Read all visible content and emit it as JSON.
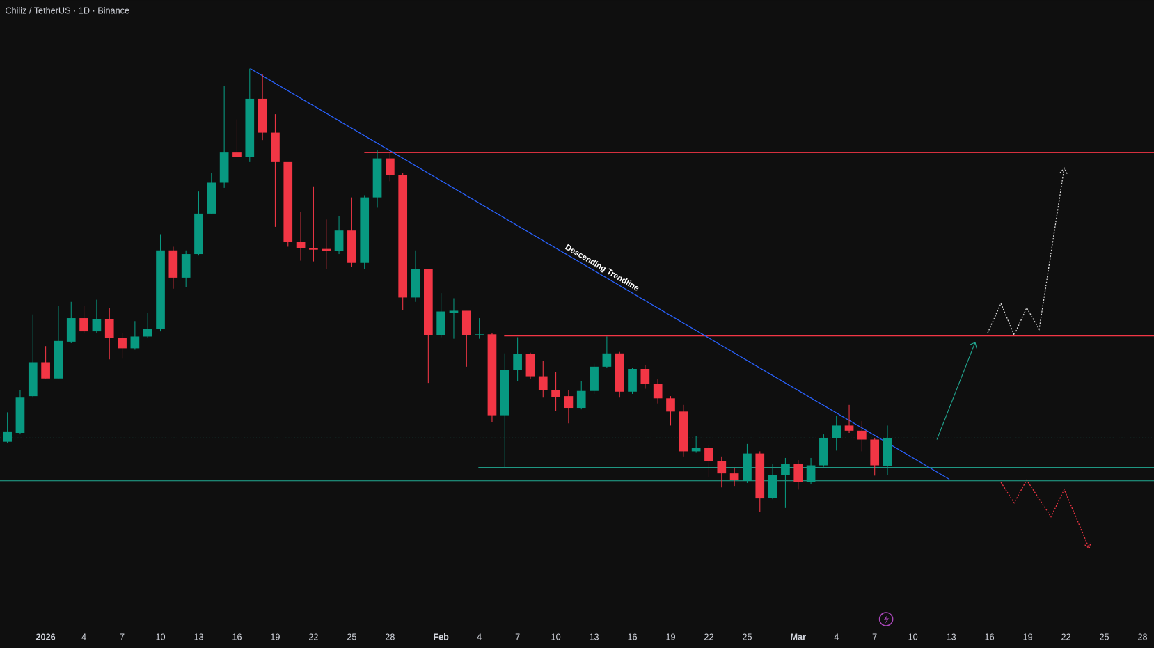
{
  "chart_data": {
    "type": "candlestick",
    "title": "Chiliz / TetherUS · 1D · Binance",
    "annotation": "Descending Trendline",
    "up_color": "#089981",
    "down_color": "#f23645",
    "xlim": [
      -3.58,
      86.9
    ],
    "ylim": [
      0,
      880
    ],
    "xticks": [
      {
        "value": 0,
        "label": "2026"
      },
      {
        "value": 3,
        "label": "4"
      },
      {
        "value": 6,
        "label": "7"
      },
      {
        "value": 9,
        "label": "10"
      },
      {
        "value": 12,
        "label": "13"
      },
      {
        "value": 15,
        "label": "16"
      },
      {
        "value": 18,
        "label": "19"
      },
      {
        "value": 21,
        "label": "22"
      },
      {
        "value": 24,
        "label": "25"
      },
      {
        "value": 27,
        "label": "28"
      },
      {
        "value": 31,
        "label": "Feb"
      },
      {
        "value": 34,
        "label": "4"
      },
      {
        "value": 37,
        "label": "7"
      },
      {
        "value": 40,
        "label": "10"
      },
      {
        "value": 43,
        "label": "13"
      },
      {
        "value": 46,
        "label": "16"
      },
      {
        "value": 49,
        "label": "19"
      },
      {
        "value": 52,
        "label": "22"
      },
      {
        "value": 55,
        "label": "25"
      },
      {
        "value": 59,
        "label": "Mar"
      },
      {
        "value": 62,
        "label": "4"
      },
      {
        "value": 65,
        "label": "7"
      },
      {
        "value": 68,
        "label": "10"
      },
      {
        "value": 71,
        "label": "13"
      },
      {
        "value": 74,
        "label": "16"
      },
      {
        "value": 77,
        "label": "19"
      },
      {
        "value": 80,
        "label": "22"
      },
      {
        "value": 83,
        "label": "25"
      },
      {
        "value": 86,
        "label": "28"
      }
    ],
    "x": [
      -3,
      -2,
      -1,
      0,
      1,
      2,
      3,
      4,
      5,
      6,
      7,
      8,
      9,
      10,
      11,
      12,
      13,
      14,
      15,
      16,
      17,
      18,
      19,
      20,
      21,
      22,
      23,
      24,
      25,
      26,
      27,
      28,
      29,
      30,
      31,
      32,
      33,
      34,
      35,
      36,
      37,
      38,
      39,
      40,
      41,
      42,
      43,
      44,
      45,
      46,
      47,
      48,
      49,
      50,
      51,
      52,
      53,
      54,
      55,
      56,
      57,
      58,
      59,
      60,
      61,
      62,
      63,
      64,
      65,
      66
    ],
    "open": [
      280,
      292,
      342,
      388,
      366,
      416,
      448,
      430,
      447,
      421,
      407,
      423,
      433,
      540,
      503,
      535,
      590,
      632,
      673,
      667,
      746,
      700,
      660,
      552,
      543,
      542,
      539,
      567,
      523,
      612,
      665,
      642,
      476,
      515,
      425,
      455,
      458,
      425,
      426,
      316,
      378,
      399,
      369,
      350,
      342,
      326,
      349,
      382,
      400,
      348,
      379,
      359,
      339,
      321,
      267,
      272,
      254,
      237,
      227,
      264,
      204,
      235,
      250,
      225,
      248,
      285,
      302,
      295,
      283,
      247
    ],
    "high": [
      320,
      350,
      453,
      410,
      465,
      470,
      465,
      473,
      462,
      428,
      444,
      455,
      562,
      545,
      540,
      620,
      645,
      763,
      718,
      787,
      780,
      725,
      658,
      592,
      627,
      582,
      587,
      612,
      615,
      676,
      673,
      645,
      540,
      515,
      482,
      475,
      458,
      448,
      428,
      400,
      422,
      401,
      390,
      375,
      350,
      362,
      386,
      423,
      402,
      380,
      384,
      365,
      342,
      330,
      288,
      275,
      260,
      244,
      277,
      267,
      250,
      258,
      255,
      258,
      290,
      315,
      330,
      308,
      285,
      302
    ],
    "low": [
      278,
      290,
      340,
      366,
      366,
      414,
      428,
      428,
      392,
      393,
      405,
      421,
      430,
      488,
      490,
      533,
      590,
      625,
      667,
      660,
      690,
      572,
      545,
      526,
      525,
      515,
      535,
      518,
      515,
      598,
      634,
      459,
      470,
      360,
      422,
      420,
      382,
      420,
      307,
      245,
      362,
      365,
      340,
      322,
      305,
      324,
      345,
      380,
      340,
      345,
      352,
      332,
      302,
      260,
      265,
      232,
      218,
      220,
      224,
      185,
      202,
      190,
      215,
      222,
      246,
      268,
      292,
      267,
      234,
      235
    ],
    "close": [
      294,
      340,
      388,
      366,
      417,
      448,
      430,
      447,
      421,
      407,
      423,
      433,
      540,
      503,
      535,
      590,
      632,
      673,
      667,
      746,
      700,
      660,
      552,
      543,
      541,
      539,
      567,
      523,
      612,
      665,
      642,
      476,
      515,
      425,
      457,
      458,
      425,
      426,
      316,
      378,
      399,
      369,
      350,
      341,
      326,
      349,
      382,
      400,
      348,
      379,
      359,
      339,
      321,
      267,
      272,
      254,
      237,
      228,
      264,
      203,
      235,
      250,
      225,
      248,
      285,
      302,
      295,
      283,
      248,
      285
    ]
  }
}
